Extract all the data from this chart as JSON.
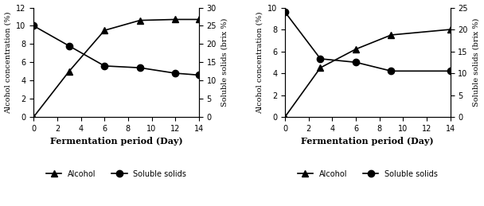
{
  "left": {
    "x": [
      0,
      3,
      6,
      9,
      12,
      14
    ],
    "alcohol": [
      0,
      5.0,
      9.5,
      10.6,
      10.7,
      10.7
    ],
    "soluble": [
      25,
      19.5,
      14,
      13.5,
      12,
      11.5
    ],
    "xlim": [
      0,
      14
    ],
    "xticks": [
      0,
      2,
      4,
      6,
      8,
      10,
      12,
      14
    ],
    "ylim_left": [
      0,
      12
    ],
    "yticks_left": [
      0,
      2,
      4,
      6,
      8,
      10,
      12
    ],
    "ylim_right": [
      0,
      30
    ],
    "yticks_right": [
      0,
      5,
      10,
      15,
      20,
      25,
      30
    ],
    "ylabel_left": "Alcohol concentration (%)",
    "ylabel_right": "Soluble solids (brix %)",
    "xlabel": "Fermentation period (Day)"
  },
  "right": {
    "x": [
      0,
      3,
      6,
      9,
      14
    ],
    "alcohol": [
      0,
      4.5,
      6.2,
      7.5,
      8.0
    ],
    "soluble": [
      24,
      13.3,
      12.5,
      10.5,
      10.5
    ],
    "xlim": [
      0,
      14
    ],
    "xticks": [
      0,
      2,
      4,
      6,
      8,
      10,
      12,
      14
    ],
    "ylim_left": [
      0,
      10
    ],
    "yticks_left": [
      0,
      2,
      4,
      6,
      8,
      10
    ],
    "ylim_right": [
      0,
      25
    ],
    "yticks_right": [
      0,
      5,
      10,
      15,
      20,
      25
    ],
    "ylabel_left": "Alcohol concentration (%)",
    "ylabel_right": "Soluble solids (brix %)",
    "xlabel": "Fermentation period (Day)"
  },
  "legend_alcohol": "Alcohol",
  "legend_soluble": "Soluble solids",
  "alcohol_color": "black",
  "soluble_color": "black",
  "alcohol_marker": "^",
  "soluble_marker": "o",
  "markersize": 6,
  "linewidth": 1.2,
  "background_color": "white",
  "font_family": "serif"
}
